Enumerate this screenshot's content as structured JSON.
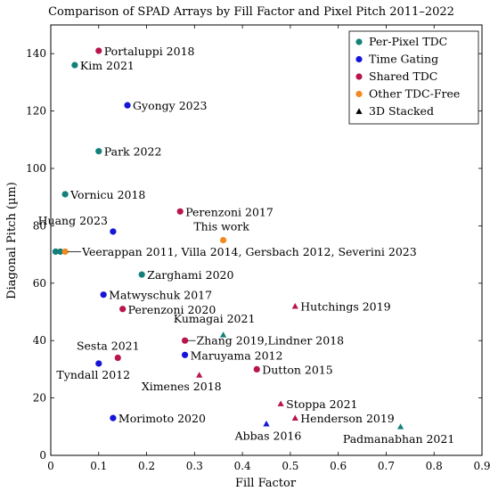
{
  "chart_data": {
    "type": "scatter",
    "title": "Comparison of SPAD Arrays by Fill Factor and Pixel Pitch 2011–2022",
    "xlabel": "Fill Factor",
    "ylabel": "Diagonal Pitch (µm)",
    "xlim": [
      0,
      0.9
    ],
    "ylim": [
      0,
      150
    ],
    "xticks": [
      "0",
      "0.1",
      "0.2",
      "0.3",
      "0.4",
      "0.5",
      "0.6",
      "0.7",
      "0.8",
      "0.9"
    ],
    "yticks": [
      "0",
      "20",
      "40",
      "60",
      "80",
      "100",
      "120",
      "140"
    ],
    "grid": false,
    "legend_position": "top-right",
    "legend": [
      {
        "label": "Per-Pixel TDC",
        "marker": "circle",
        "color": "#138079"
      },
      {
        "label": "Time Gating",
        "marker": "circle",
        "color": "#1515d6"
      },
      {
        "label": "Shared TDC",
        "marker": "circle",
        "color": "#b8154a"
      },
      {
        "label": "Other TDC-Free",
        "marker": "circle",
        "color": "#f08a1e"
      },
      {
        "label": "3D Stacked",
        "marker": "triangle",
        "color": "#000000"
      }
    ],
    "points": [
      {
        "x": 0.1,
        "y": 141,
        "category": "Shared TDC",
        "marker": "circle",
        "label": "Portaluppi 2018"
      },
      {
        "x": 0.05,
        "y": 136,
        "category": "Per-Pixel TDC",
        "marker": "circle",
        "label": "Kim 2021"
      },
      {
        "x": 0.16,
        "y": 122,
        "category": "Time Gating",
        "marker": "circle",
        "label": "Gyongy 2023"
      },
      {
        "x": 0.1,
        "y": 106,
        "category": "Per-Pixel TDC",
        "marker": "circle",
        "label": "Park 2022"
      },
      {
        "x": 0.03,
        "y": 91,
        "category": "Per-Pixel TDC",
        "marker": "circle",
        "label": "Vornicu 2018"
      },
      {
        "x": 0.27,
        "y": 85,
        "category": "Shared TDC",
        "marker": "circle",
        "label": "Perenzoni 2017"
      },
      {
        "x": 0.13,
        "y": 78,
        "category": "Time Gating",
        "marker": "circle",
        "label": "Huang 2023"
      },
      {
        "x": 0.36,
        "y": 75,
        "category": "Other TDC-Free",
        "marker": "circle",
        "label": "This work"
      },
      {
        "x": 0.01,
        "y": 71,
        "category": "Per-Pixel TDC",
        "marker": "circle",
        "label": ""
      },
      {
        "x": 0.02,
        "y": 71,
        "category": "Per-Pixel TDC",
        "marker": "circle",
        "label": ""
      },
      {
        "x": 0.03,
        "y": 71,
        "category": "Other TDC-Free",
        "marker": "circle",
        "label": "Veerappan 2011, Villa 2014, Gersbach 2012, Severini 2023"
      },
      {
        "x": 0.19,
        "y": 63,
        "category": "Per-Pixel TDC",
        "marker": "circle",
        "label": "Zarghami 2020"
      },
      {
        "x": 0.11,
        "y": 56,
        "category": "Time Gating",
        "marker": "circle",
        "label": "Matwyschuk 2017"
      },
      {
        "x": 0.15,
        "y": 51,
        "category": "Shared TDC",
        "marker": "circle",
        "label": "Perenzoni 2020"
      },
      {
        "x": 0.51,
        "y": 52,
        "category": "Shared TDC",
        "marker": "triangle",
        "label": "Hutchings 2019"
      },
      {
        "x": 0.36,
        "y": 42,
        "category": "Per-Pixel TDC",
        "marker": "triangle",
        "label": "Kumagai 2021"
      },
      {
        "x": 0.28,
        "y": 40,
        "category": "Shared TDC",
        "marker": "circle",
        "label": "Zhang 2019,Lindner 2018"
      },
      {
        "x": 0.28,
        "y": 35,
        "category": "Time Gating",
        "marker": "circle",
        "label": "Maruyama 2012"
      },
      {
        "x": 0.14,
        "y": 34,
        "category": "Shared TDC",
        "marker": "circle",
        "label": "Sesta 2021"
      },
      {
        "x": 0.1,
        "y": 32,
        "category": "Time Gating",
        "marker": "circle",
        "label": "Tyndall 2012"
      },
      {
        "x": 0.43,
        "y": 30,
        "category": "Shared TDC",
        "marker": "circle",
        "label": "Dutton 2015"
      },
      {
        "x": 0.31,
        "y": 28,
        "category": "Shared TDC",
        "marker": "triangle",
        "label": "Ximenes 2018"
      },
      {
        "x": 0.48,
        "y": 18,
        "category": "Shared TDC",
        "marker": "triangle",
        "label": "Stoppa 2021"
      },
      {
        "x": 0.13,
        "y": 13,
        "category": "Time Gating",
        "marker": "circle",
        "label": "Morimoto 2020"
      },
      {
        "x": 0.51,
        "y": 13,
        "category": "Shared TDC",
        "marker": "triangle",
        "label": "Henderson 2019"
      },
      {
        "x": 0.45,
        "y": 11,
        "category": "Time Gating",
        "marker": "triangle",
        "label": "Abbas 2016"
      },
      {
        "x": 0.73,
        "y": 10,
        "category": "Per-Pixel TDC",
        "marker": "triangle",
        "label": "Padmanabhan 2021"
      }
    ]
  }
}
